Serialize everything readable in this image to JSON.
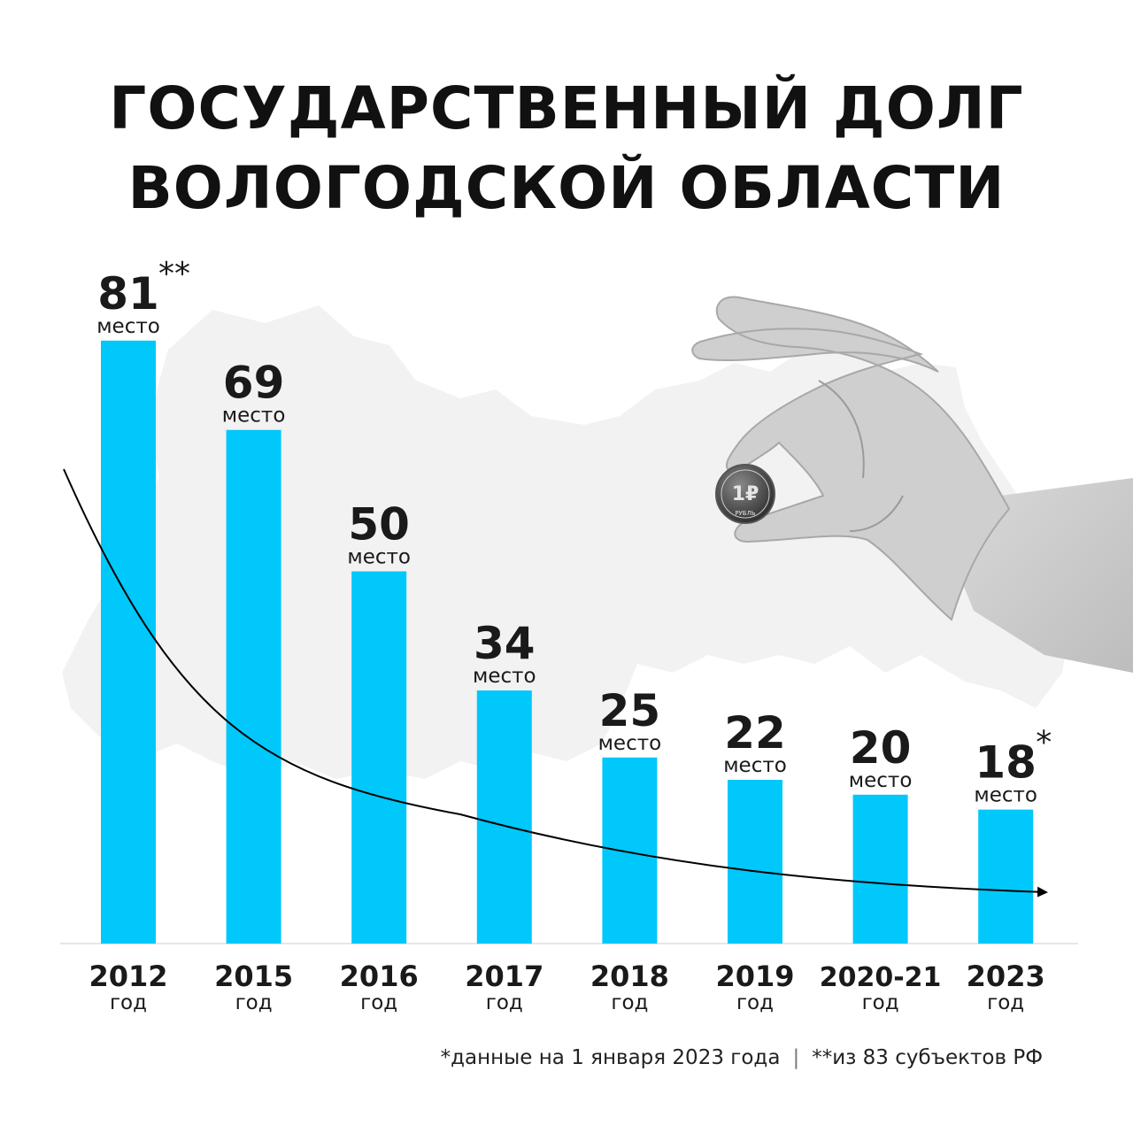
{
  "title": {
    "line1": "ГОСУДАРСТВЕННЫЙ ДОЛГ",
    "line2": "ВОЛОГОДСКОЙ ОБЛАСТИ"
  },
  "chart_data": {
    "type": "bar",
    "categories": [
      "2012",
      "2015",
      "2016",
      "2017",
      "2018",
      "2019",
      "2020-21",
      "2023"
    ],
    "category_sublabel": "год",
    "values": [
      81,
      69,
      50,
      34,
      25,
      22,
      20,
      18
    ],
    "value_sublabel": "место",
    "value_marks": [
      "**",
      "",
      "",
      "",
      "",
      "",
      "",
      "*"
    ],
    "trend": "decreasing curve with arrow",
    "bar_color": "#00c8fa"
  },
  "footnotes": {
    "note1": "*данные на 1 января 2023 года",
    "separator": "|",
    "note2": "**из 83 субъектов РФ"
  },
  "illustration": {
    "coin_text": "РУБЛЬ",
    "coin_denomination": "1₽"
  },
  "colors": {
    "bar": "#00c8fa",
    "text": "#111111",
    "map_silhouette": "#f2f2f2"
  }
}
